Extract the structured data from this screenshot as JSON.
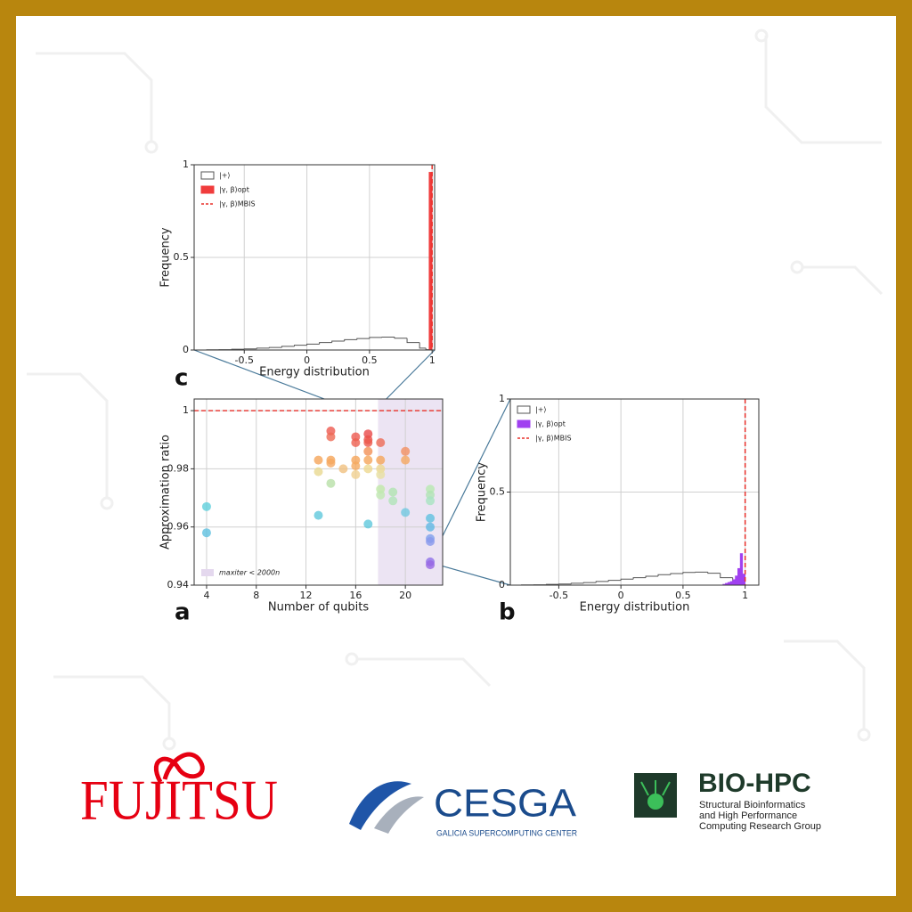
{
  "chart_data": [
    {
      "type": "histogram",
      "panel": "c",
      "xlabel": "Energy distribution",
      "ylabel": "Frequency",
      "xlim": [
        -0.9,
        1.02
      ],
      "ylim": [
        0,
        1
      ],
      "xticks": [
        -0.5,
        0,
        0.5,
        1
      ],
      "yticks": [
        0,
        0.5,
        1
      ],
      "grid": true,
      "series": [
        {
          "name": "|+⟩",
          "kind": "step",
          "color": "#555555",
          "bins": [
            -0.9,
            -0.8,
            -0.7,
            -0.6,
            -0.5,
            -0.4,
            -0.3,
            -0.2,
            -0.1,
            0,
            0.1,
            0.2,
            0.3,
            0.4,
            0.5,
            0.6,
            0.7,
            0.8,
            0.9,
            0.95,
            1.0
          ],
          "values": [
            0,
            0.001,
            0.002,
            0.004,
            0.006,
            0.01,
            0.014,
            0.02,
            0.026,
            0.032,
            0.04,
            0.048,
            0.056,
            0.062,
            0.068,
            0.07,
            0.064,
            0.04,
            0.01,
            0.002
          ]
        },
        {
          "name": "|γ, β⟩opt",
          "kind": "bar",
          "color": "#f03c3c",
          "bins": [
            0.975,
            1.0
          ],
          "values": [
            0.96
          ]
        },
        {
          "name": "|γ, β⟩MBIS",
          "kind": "vline",
          "color": "#e8302a",
          "x": 1
        }
      ]
    },
    {
      "type": "scatter",
      "panel": "a",
      "xlabel": "Number of qubits",
      "ylabel": "Approximation ratio",
      "xlim": [
        3,
        23
      ],
      "ylim": [
        0.94,
        1.004
      ],
      "xticks": [
        4,
        8,
        12,
        16,
        20
      ],
      "yticks": [
        0.94,
        0.96,
        0.98,
        1
      ],
      "grid": true,
      "hline": 1,
      "hline_color": "#e8302a",
      "shade": [
        17.8,
        23
      ],
      "shade_color": "#e4d8ee",
      "shade_label": "maxiter < 2000n",
      "x": [
        4,
        4,
        13,
        13,
        13,
        14,
        14,
        14,
        14,
        14,
        15,
        16,
        16,
        16,
        16,
        16,
        17,
        17,
        17,
        17,
        17,
        17,
        17,
        18,
        18,
        18,
        18,
        18,
        18,
        19,
        19,
        20,
        20,
        20,
        22,
        22,
        22,
        22,
        22,
        22,
        22,
        22,
        22
      ],
      "values": [
        0.967,
        0.958,
        0.983,
        0.979,
        0.964,
        0.993,
        0.991,
        0.983,
        0.982,
        0.975,
        0.98,
        0.991,
        0.989,
        0.983,
        0.981,
        0.978,
        0.992,
        0.99,
        0.989,
        0.986,
        0.983,
        0.98,
        0.961,
        0.989,
        0.983,
        0.98,
        0.978,
        0.973,
        0.971,
        0.972,
        0.969,
        0.986,
        0.983,
        0.965,
        0.973,
        0.971,
        0.969,
        0.963,
        0.96,
        0.956,
        0.955,
        0.948,
        0.947
      ],
      "colors": [
        "#5fd0dc",
        "#5fc0e0",
        "#f5a55a",
        "#e8d890",
        "#5fc8dc",
        "#ee5a50",
        "#ee6a55",
        "#f5a55a",
        "#f5a860",
        "#b8e0a8",
        "#f0c080",
        "#ee5a50",
        "#ee6050",
        "#f5a55a",
        "#f5aa60",
        "#f0d090",
        "#e84848",
        "#ea5048",
        "#ec5a4c",
        "#f29055",
        "#f5a55a",
        "#eed890",
        "#5fc8dc",
        "#ee6a55",
        "#f5a55a",
        "#eed890",
        "#e8e0a0",
        "#c0e8a8",
        "#c0e8b0",
        "#b0e4b0",
        "#b0e4b8",
        "#f29060",
        "#f5a860",
        "#70c8e0",
        "#b8e8b0",
        "#b0e4b4",
        "#a8e4c0",
        "#60c0e0",
        "#60b8e4",
        "#80a0ec",
        "#8898ec",
        "#9070e8",
        "#9868e4"
      ]
    },
    {
      "type": "histogram",
      "panel": "b",
      "xlabel": "Energy distribution",
      "ylabel": "Frequency",
      "xlim": [
        -0.89,
        1.11
      ],
      "ylim": [
        0,
        1
      ],
      "xticks": [
        -0.5,
        0,
        0.5,
        1
      ],
      "yticks": [
        0,
        0.5,
        1
      ],
      "grid": true,
      "series": [
        {
          "name": "|+⟩",
          "kind": "step",
          "color": "#555555",
          "bins": [
            -0.9,
            -0.8,
            -0.7,
            -0.6,
            -0.5,
            -0.4,
            -0.3,
            -0.2,
            -0.1,
            0,
            0.1,
            0.2,
            0.3,
            0.4,
            0.5,
            0.6,
            0.7,
            0.8,
            0.9,
            0.95,
            1.0
          ],
          "values": [
            0,
            0.001,
            0.002,
            0.004,
            0.006,
            0.01,
            0.014,
            0.02,
            0.026,
            0.032,
            0.04,
            0.048,
            0.056,
            0.062,
            0.068,
            0.07,
            0.064,
            0.04,
            0.01,
            0.002
          ]
        },
        {
          "name": "|γ, β⟩opt",
          "kind": "bar",
          "color": "#a040f0",
          "bins": [
            0.82,
            0.84,
            0.86,
            0.88,
            0.9,
            0.92,
            0.94,
            0.96,
            0.98,
            1.0
          ],
          "values": [
            0.005,
            0.01,
            0.015,
            0.02,
            0.03,
            0.05,
            0.09,
            0.17,
            0.06
          ]
        },
        {
          "name": "|γ, β⟩MBIS",
          "kind": "vline",
          "color": "#e8302a",
          "x": 1
        }
      ]
    }
  ],
  "logos": {
    "fujitsu": "FUJITSU",
    "cesga": "CESGA",
    "cesga_sub": "GALICIA SUPERCOMPUTING CENTER",
    "biohpc": "BIO-HPC",
    "biohpc_sub": [
      "Structural Bioinformatics",
      "and High Performance",
      "Computing Research Group"
    ]
  }
}
